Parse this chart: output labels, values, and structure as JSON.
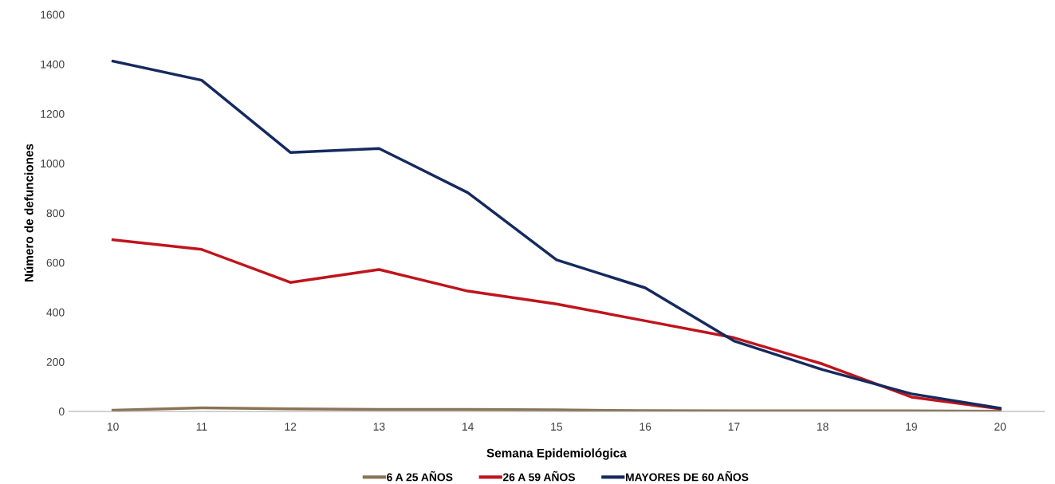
{
  "chart_data": {
    "type": "line",
    "xlabel": "Semana Epidemiológica",
    "ylabel": "Número de defunciones",
    "categories": [
      "10",
      "11",
      "12",
      "13",
      "14",
      "15",
      "16",
      "17",
      "18",
      "19",
      "20"
    ],
    "series": [
      {
        "name": "6 A 25 AÑOS",
        "color": "#8b7355",
        "values": [
          5,
          14,
          10,
          8,
          8,
          6,
          3,
          2,
          2,
          2,
          1
        ]
      },
      {
        "name": "26 A 59 AÑOS",
        "color": "#c0141c",
        "values": [
          692,
          653,
          520,
          572,
          485,
          433,
          365,
          297,
          191,
          58,
          10
        ]
      },
      {
        "name": "MAYORES DE 60 AÑOS",
        "color": "#152a5e",
        "values": [
          1412,
          1335,
          1044,
          1060,
          882,
          611,
          498,
          284,
          168,
          71,
          13
        ]
      }
    ],
    "ylim": [
      0,
      1600
    ],
    "yticks": [
      0,
      200,
      400,
      600,
      800,
      1000,
      1200,
      1400,
      1600
    ],
    "grid": false,
    "legend": "bottom",
    "marker": "none",
    "line_style": "solid"
  }
}
